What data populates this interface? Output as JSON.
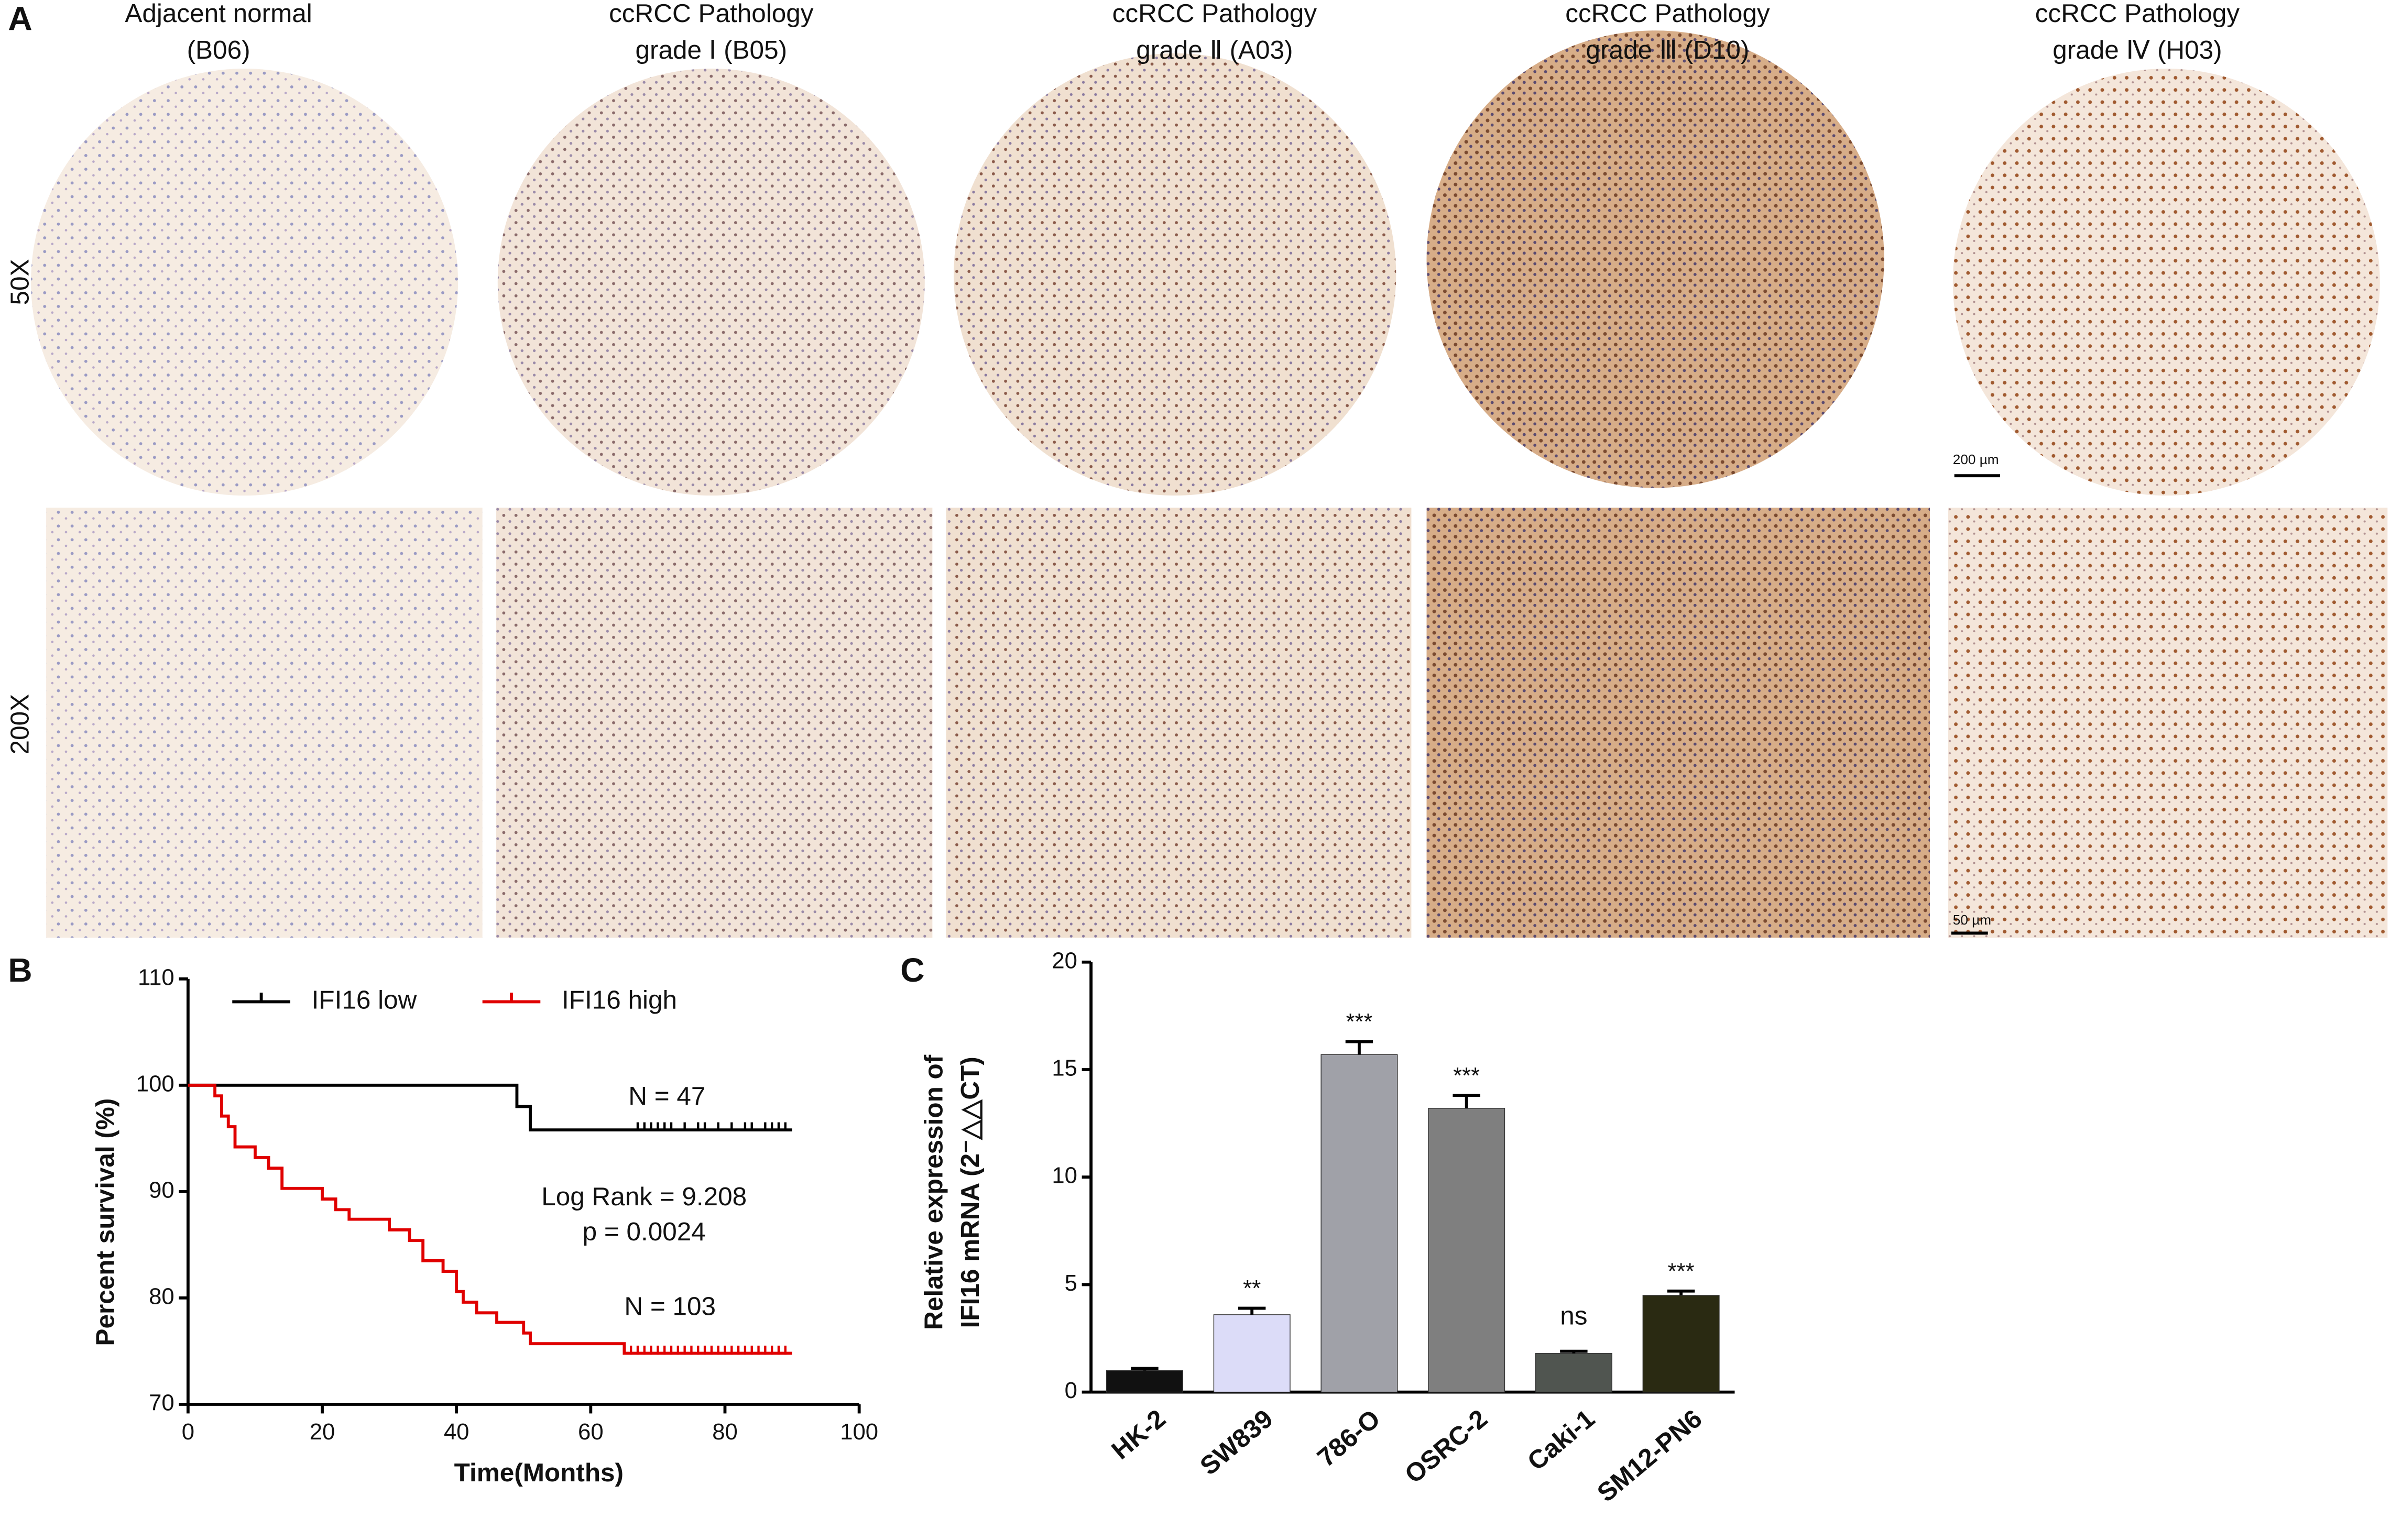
{
  "panel_labels": [
    "A",
    "B",
    "C"
  ],
  "ihc": {
    "columns": [
      [
        "Adjacent normal",
        "(B06)"
      ],
      [
        "ccRCC Pathology",
        "grade Ⅰ (B05)"
      ],
      [
        "ccRCC Pathology",
        "grade Ⅱ (A03)"
      ],
      [
        "ccRCC Pathology",
        "grade Ⅲ (D10)"
      ],
      [
        "ccRCC Pathology",
        "grade Ⅳ (H03)"
      ]
    ],
    "magnifications": [
      "50X",
      "200X"
    ],
    "scale_bars": [
      "200 µm",
      "50 µm"
    ]
  },
  "chart_data": [
    {
      "type": "line",
      "step": true,
      "xlabel": "Time(Months)",
      "ylabel": "Percent survival (%)",
      "xlim": [
        0,
        100
      ],
      "xticks": [
        0,
        20,
        40,
        60,
        80,
        100
      ],
      "ylim": [
        70,
        110
      ],
      "yticks": [
        70,
        80,
        90,
        100,
        110
      ],
      "legend": "top-left",
      "series": [
        {
          "name": "IFI16 low",
          "color": "#000000",
          "x": [
            0,
            49,
            51,
            90
          ],
          "values": [
            100,
            98,
            95.8,
            95.8
          ],
          "censor_x": [
            67,
            68,
            69,
            70,
            71,
            72,
            74,
            76,
            77,
            79,
            81,
            83,
            84,
            86,
            87,
            88,
            89
          ]
        },
        {
          "name": "IFI16 high",
          "color": "#e00000",
          "x": [
            0,
            4,
            5,
            6,
            7,
            10,
            12,
            14,
            20,
            22,
            24,
            30,
            33,
            35,
            38,
            40,
            41,
            43,
            46,
            50,
            51,
            56,
            65,
            90
          ],
          "values": [
            100,
            99,
            97.1,
            96.1,
            94.2,
            93.2,
            92.2,
            90.3,
            89.3,
            88.3,
            87.4,
            86.4,
            85.4,
            83.5,
            82.5,
            80.6,
            79.6,
            78.6,
            77.7,
            76.7,
            75.7,
            75.7,
            74.8,
            74.8
          ],
          "censor_x": [
            66,
            67,
            68,
            69,
            70,
            71,
            72,
            73,
            74,
            75,
            76,
            77,
            78,
            79,
            80,
            81,
            82,
            83,
            84,
            85,
            86,
            87,
            88,
            89
          ]
        }
      ],
      "annotations": [
        "N = 47",
        "Log Rank = 9.208",
        "p = 0.0024",
        "N = 103"
      ]
    },
    {
      "type": "bar",
      "ylabel": [
        "Relative expression of",
        "IFI16 mRNA (2⁻△△CT)"
      ],
      "categories": [
        "HK-2",
        "SW839",
        "786-O",
        "OSRC-2",
        "Caki-1",
        "SM12-PN6"
      ],
      "values": [
        1.0,
        3.6,
        15.7,
        13.2,
        1.8,
        4.5
      ],
      "errors": [
        0.1,
        0.3,
        0.6,
        0.6,
        0.1,
        0.2
      ],
      "colors": [
        "#111111",
        "#dcdcf8",
        "#a0a1a8",
        "#7f7f7f",
        "#505550",
        "#2a2a12"
      ],
      "significance": [
        null,
        "**",
        "***",
        "***",
        "ns",
        "***"
      ],
      "ylim": [
        0,
        20
      ],
      "yticks": [
        0,
        5,
        10,
        15,
        20
      ]
    }
  ]
}
